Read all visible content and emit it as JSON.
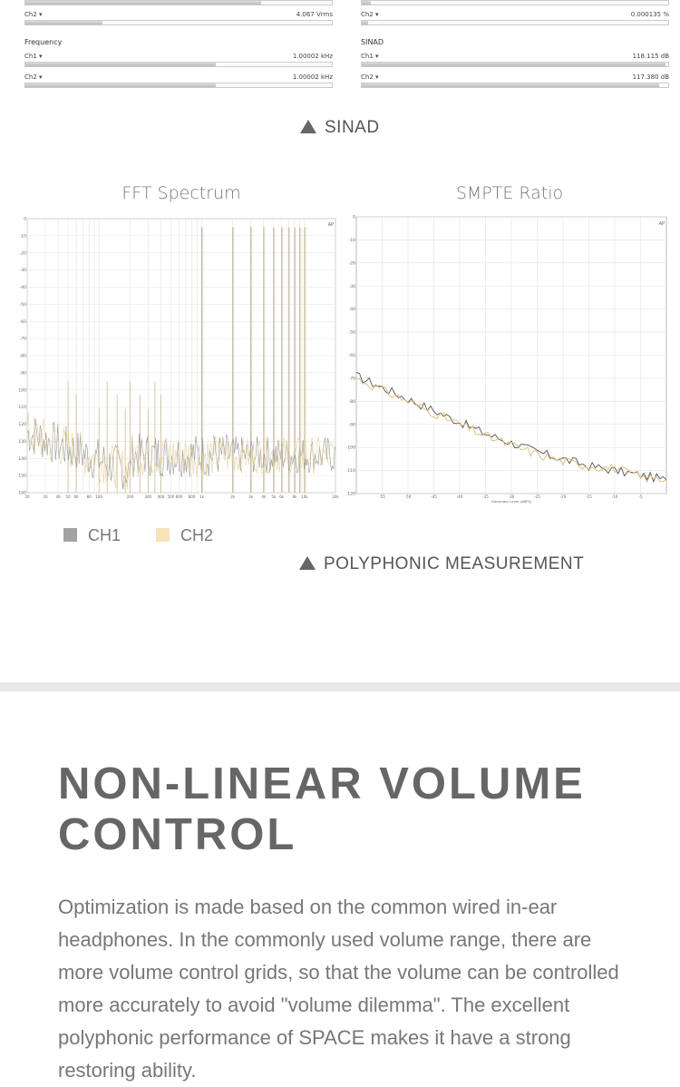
{
  "meters": {
    "left_top": {
      "ch2_label": "Ch2 ▾",
      "ch2_value": "4.067 Vrms",
      "ch2_level": 0.25
    },
    "frequency": {
      "title": "Frequency",
      "ch1_label": "Ch1 ▾",
      "ch1_value": "1.00002 kHz",
      "ch1_level": 0.62,
      "ch2_label": "Ch2 ▾",
      "ch2_value": "1.00002 kHz",
      "ch2_level": 0.62
    },
    "right_top": {
      "ch2_label": "Ch2 ▾",
      "ch2_value": "0.000135 %",
      "ch2_level": 0.02
    },
    "sinad": {
      "title": "SINAD",
      "ch1_label": "Ch1 ▾",
      "ch1_value": "118.115 dB",
      "ch1_level": 0.99,
      "ch2_label": "Ch2 ▾",
      "ch2_value": "117.380 dB",
      "ch2_level": 0.97
    }
  },
  "captions": {
    "sinad": "SINAD",
    "polyphonic": "POLYPHONIC MEASUREMENT"
  },
  "charts": {
    "fft_title": "FFT Spectrum",
    "smpte_title": "SMPTE Ratio",
    "fft_yticks": [
      "0",
      "-10",
      "-20",
      "-30",
      "-40",
      "-50",
      "-60",
      "-70",
      "-80",
      "-90",
      "-100",
      "-110",
      "-120",
      "-130",
      "-140",
      "-150",
      "-160"
    ],
    "fft_xticks": [
      "20",
      "30",
      "40",
      "50",
      "60",
      "80",
      "100",
      "200",
      "300",
      "400",
      "500",
      "600",
      "800",
      "1k",
      "2k",
      "3k",
      "4k",
      "5k",
      "6k",
      "8k",
      "10k",
      "20k"
    ],
    "smpte_yticks": [
      "0",
      "-10",
      "-20",
      "-30",
      "-40",
      "-50",
      "-60",
      "-70",
      "-80",
      "-90",
      "-100",
      "-110",
      "-120"
    ],
    "smpte_xticks": [
      "-55",
      "-50",
      "-45",
      "-40",
      "-35",
      "-30",
      "-25",
      "-20",
      "-15",
      "-10",
      "-5"
    ],
    "smpte_xlabel": "Generator Level (dBFS)",
    "ap_logo": "AP"
  },
  "legend": {
    "ch1": "CH1",
    "ch2": "CH2",
    "ch1_color": "#a3a3a3",
    "ch2_color": "#f7e4b8"
  },
  "section": {
    "headline_line1": "NON-LINEAR VOLUME",
    "headline_line2": "CONTROL",
    "body": "Optimization is made based on the common wired in-ear headphones. In the commonly used volume range, there are more volume control grids, so that the volume can be controlled more accurately to avoid \"volume dilemma\". The excellent polyphonic performance of SPACE makes it have a strong restoring ability."
  },
  "chart_data": [
    {
      "type": "line",
      "title": "FFT Spectrum",
      "xlabel": "",
      "ylabel": "",
      "xscale": "log",
      "xlim": [
        20,
        20000
      ],
      "ylim": [
        -160,
        0
      ],
      "grid": true,
      "series": [
        {
          "name": "CH1",
          "x": [
            1000,
            2000,
            3000,
            4000,
            5000,
            6000,
            7000,
            8000,
            9000,
            10000
          ],
          "y": [
            -5,
            -5,
            -5,
            -5,
            -5,
            -5,
            -5,
            -5,
            -5,
            -5
          ]
        },
        {
          "name": "CH2",
          "x": [
            1000,
            2000,
            3000,
            4000,
            5000,
            6000,
            7000,
            8000,
            9000,
            10000
          ],
          "y": [
            -5,
            -5,
            -5,
            -5,
            -5,
            -5,
            -5,
            -5,
            -5,
            -5
          ]
        }
      ],
      "noise_floor": [
        -150,
        -120
      ]
    },
    {
      "type": "line",
      "title": "SMPTE Ratio",
      "xlabel": "Generator Level (dBFS)",
      "ylabel": "",
      "xlim": [
        -60,
        0
      ],
      "ylim": [
        -120,
        0
      ],
      "grid": true,
      "series": [
        {
          "name": "CH1",
          "x": [
            -60,
            -55,
            -50,
            -45,
            -40,
            -35,
            -30,
            -25,
            -20,
            -15,
            -10,
            -5,
            0
          ],
          "y": [
            -69,
            -74,
            -79,
            -84,
            -89,
            -94,
            -98,
            -102,
            -105,
            -108,
            -110,
            -112,
            -114
          ]
        },
        {
          "name": "CH2",
          "x": [
            -60,
            -55,
            -50,
            -45,
            -40,
            -35,
            -30,
            -25,
            -20,
            -15,
            -10,
            -5,
            0
          ],
          "y": [
            -70,
            -75,
            -80,
            -85,
            -90,
            -95,
            -99,
            -103,
            -106,
            -108,
            -109,
            -113,
            -114
          ]
        }
      ]
    }
  ]
}
